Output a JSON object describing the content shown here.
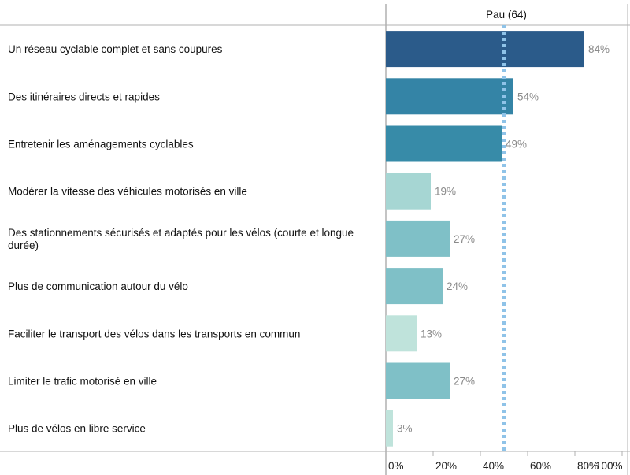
{
  "chart_data": {
    "type": "bar",
    "orientation": "horizontal",
    "panel_title": "Pau (64)",
    "categories": [
      "Un réseau cyclable complet et sans coupures",
      "Des itinéraires directs et rapides",
      "Entretenir les aménagements cyclables",
      "Modérer la vitesse des véhicules motorisés en ville",
      "Des stationnements sécurisés et adaptés pour les vélos (courte et longue durée)",
      "Plus de communication autour du vélo",
      "Faciliter le transport des vélos dans les transports en commun",
      "Limiter le trafic motorisé en ville",
      "Plus de vélos en libre service"
    ],
    "values": [
      84,
      54,
      49,
      19,
      27,
      24,
      13,
      27,
      3
    ],
    "value_labels": [
      "84%",
      "54%",
      "49%",
      "19%",
      "27%",
      "24%",
      "13%",
      "27%",
      "3%"
    ],
    "xlim": [
      0,
      100
    ],
    "x_ticks": [
      0,
      20,
      40,
      60,
      80,
      100
    ],
    "x_tick_labels": [
      "0%",
      "20%",
      "40%",
      "60%",
      "80%",
      "100%"
    ],
    "reference_line": 50,
    "grid": false
  },
  "colors": {
    "bar_dark": "#2b5b8a",
    "bar_mid": "#3484a6",
    "bar_mid2": "#378ba8",
    "bar_light": "#7fc0c7",
    "bar_lighter": "#a6d6d3",
    "bar_lightest": "#bfe3db",
    "reference_line": "#8fc3e8",
    "axis": "#b0b0b0"
  }
}
